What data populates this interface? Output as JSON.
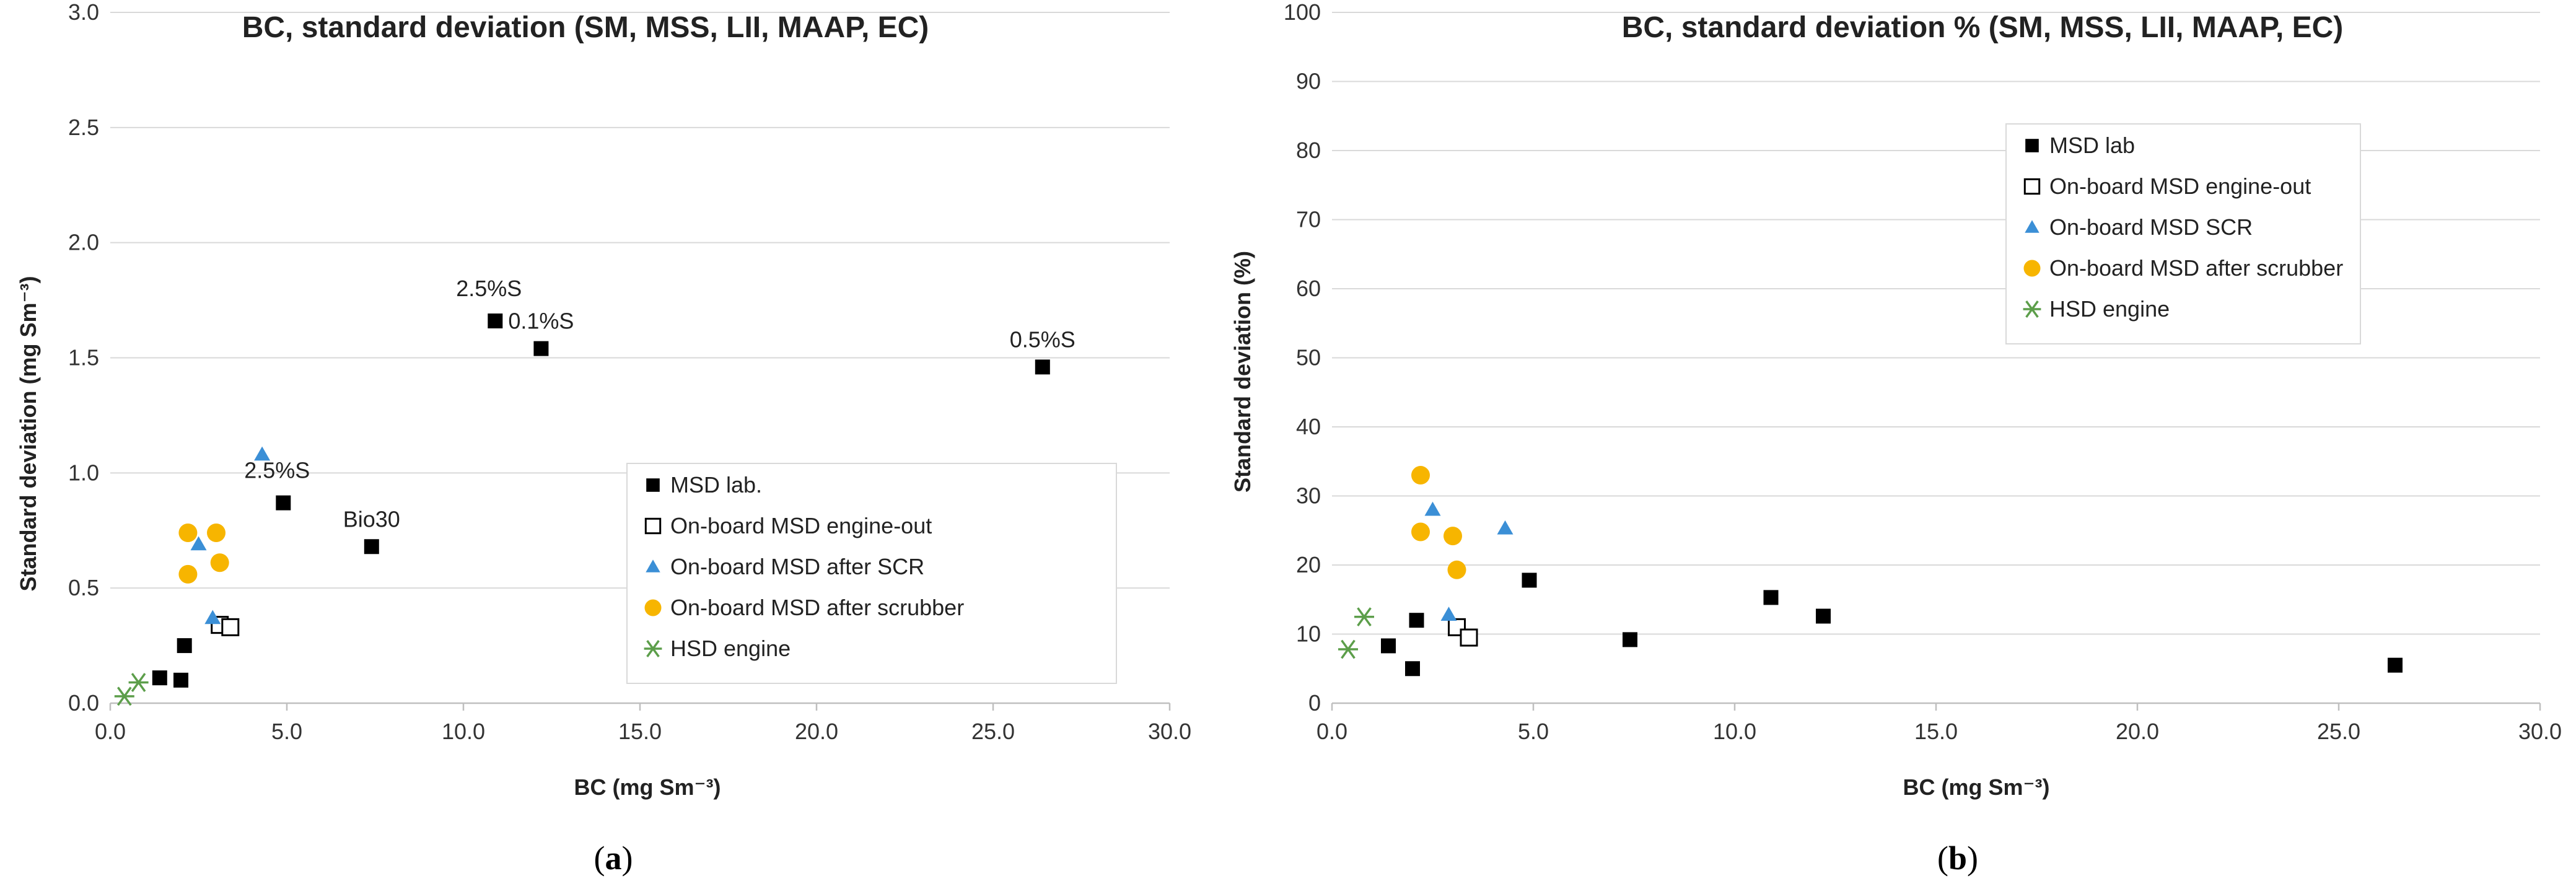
{
  "figure": {
    "panel_label_a": "a",
    "panel_label_b": "b"
  },
  "colors": {
    "msd_lab": "#000000",
    "engine_out": "#000000",
    "scr": "#3b8fd6",
    "scrubber": "#f7b500",
    "hsd": "#5c9e4a",
    "grid": "#d9d9d9",
    "axis": "#bfbfbf"
  },
  "chart_data": [
    {
      "type": "scatter",
      "title": "BC, standard  deviation (SM, MSS, LII, MAAP, EC)",
      "xlabel": "BC (mg Sm⁻³)",
      "ylabel": "Standard deviation (mg Sm⁻³)",
      "xlim": [
        0,
        30
      ],
      "ylim": [
        0,
        3
      ],
      "xticks": [
        "0.0",
        "5.0",
        "10.0",
        "15.0",
        "20.0",
        "25.0",
        "30.0"
      ],
      "yticks": [
        "0.0",
        "0.5",
        "1.0",
        "1.5",
        "2.0",
        "2.5",
        "3.0"
      ],
      "grid": "horizontal",
      "legend_position": "lower-right",
      "series": [
        {
          "name": "MSD lab.",
          "marker": "square-filled",
          "points": [
            [
              1.4,
              0.11
            ],
            [
              2.0,
              0.1
            ],
            [
              2.1,
              0.25
            ],
            [
              4.9,
              0.87
            ],
            [
              7.4,
              0.68
            ],
            [
              10.9,
              1.66
            ],
            [
              12.2,
              1.54
            ],
            [
              26.4,
              1.46
            ]
          ]
        },
        {
          "name": "On-board MSD engine-out",
          "marker": "square-open",
          "points": [
            [
              3.1,
              0.34
            ],
            [
              3.4,
              0.33
            ]
          ]
        },
        {
          "name": "On-board MSD after SCR",
          "marker": "triangle",
          "points": [
            [
              2.5,
              0.69
            ],
            [
              2.9,
              0.37
            ],
            [
              4.3,
              1.08
            ]
          ]
        },
        {
          "name": "On-board MSD after scrubber",
          "marker": "circle",
          "points": [
            [
              2.2,
              0.74
            ],
            [
              2.2,
              0.56
            ],
            [
              3.0,
              0.74
            ],
            [
              3.1,
              0.61
            ]
          ]
        },
        {
          "name": "HSD engine",
          "marker": "star",
          "points": [
            [
              0.4,
              0.03
            ],
            [
              0.8,
              0.09
            ]
          ]
        }
      ],
      "annotations": [
        {
          "text": "2.5%S",
          "x": 10.9,
          "y": 1.66,
          "placement": "above-left"
        },
        {
          "text": "0.1%S",
          "x": 12.2,
          "y": 1.54,
          "placement": "above"
        },
        {
          "text": "0.5%S",
          "x": 26.4,
          "y": 1.46,
          "placement": "above"
        },
        {
          "text": "2.5%S",
          "x": 4.9,
          "y": 0.87,
          "placement": "above-left"
        },
        {
          "text": "Bio30",
          "x": 7.4,
          "y": 0.68,
          "placement": "above"
        }
      ]
    },
    {
      "type": "scatter",
      "title": "BC, standard  deviation % (SM, MSS, LII, MAAP, EC)",
      "xlabel": "BC (mg Sm⁻³)",
      "ylabel": "Standard deviation (%)",
      "xlim": [
        0,
        30
      ],
      "ylim": [
        0,
        100
      ],
      "xticks": [
        "0.0",
        "5.0",
        "10.0",
        "15.0",
        "20.0",
        "25.0",
        "30.0"
      ],
      "yticks": [
        "0",
        "10",
        "20",
        "30",
        "40",
        "50",
        "60",
        "70",
        "80",
        "90",
        "100"
      ],
      "grid": "horizontal",
      "legend_position": "top-right",
      "series": [
        {
          "name": "MSD lab",
          "marker": "square-filled",
          "points": [
            [
              1.4,
              8.3
            ],
            [
              2.0,
              5.0
            ],
            [
              2.1,
              12.0
            ],
            [
              4.9,
              17.8
            ],
            [
              7.4,
              9.2
            ],
            [
              10.9,
              15.3
            ],
            [
              12.2,
              12.6
            ],
            [
              26.4,
              5.5
            ]
          ]
        },
        {
          "name": "On-board MSD engine-out",
          "marker": "square-open",
          "points": [
            [
              3.1,
              11.0
            ],
            [
              3.4,
              9.5
            ]
          ]
        },
        {
          "name": "On-board MSD  SCR",
          "marker": "triangle",
          "points": [
            [
              2.5,
              28.0
            ],
            [
              2.9,
              12.8
            ],
            [
              4.3,
              25.3
            ]
          ]
        },
        {
          "name": "On-board MSD after scrubber",
          "marker": "circle",
          "points": [
            [
              2.2,
              33.0
            ],
            [
              2.2,
              24.8
            ],
            [
              3.0,
              24.2
            ],
            [
              3.1,
              19.3
            ]
          ]
        },
        {
          "name": "HSD engine",
          "marker": "star",
          "points": [
            [
              0.4,
              7.8
            ],
            [
              0.8,
              12.5
            ]
          ]
        }
      ],
      "annotations": []
    }
  ]
}
